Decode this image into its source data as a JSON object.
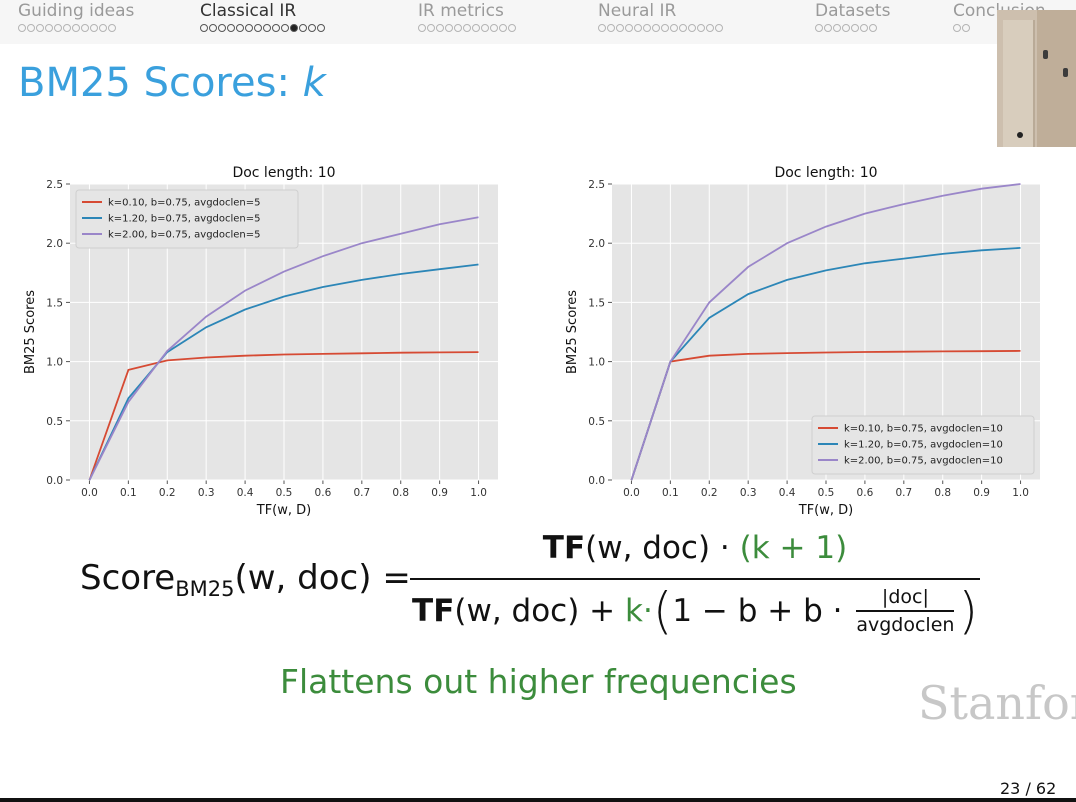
{
  "nav": {
    "sections": [
      {
        "label": "Guiding ideas",
        "dots": 11,
        "filled": -1,
        "active": false
      },
      {
        "label": "Classical IR",
        "dots": 14,
        "filled": 10,
        "active": true
      },
      {
        "label": "IR metrics",
        "dots": 11,
        "filled": -1,
        "active": false
      },
      {
        "label": "Neural IR",
        "dots": 14,
        "filled": -1,
        "active": false
      },
      {
        "label": "Datasets",
        "dots": 7,
        "filled": -1,
        "active": false
      },
      {
        "label": "Conclusion",
        "dots": 2,
        "filled": -1,
        "active": false
      }
    ]
  },
  "slide": {
    "title": "BM25 Scores: ",
    "title_var": "k",
    "caption": "Flattens out higher frequencies",
    "logo": "Stanford",
    "page": "23 / 62"
  },
  "formula": {
    "lhs_main": "Score",
    "lhs_sub": "BM25",
    "lhs_args": "(w, doc) =",
    "tf": "TF",
    "num_args": "(w, doc) · ",
    "num_green": "(k + 1)",
    "den_args": "(w, doc) + ",
    "den_k": "k·",
    "den_open": "(",
    "den_mid": "1 − b + b · ",
    "frac_top": "|doc|",
    "frac_bottom": "avgdoclen",
    "den_close": ")"
  },
  "colors": {
    "title": "#3aa0dd",
    "caption": "#3c8c3c",
    "plot_bg": "#e5e5e5",
    "series": [
      "#d64a33",
      "#2c86b7",
      "#9a86c9"
    ]
  },
  "chart_data": [
    {
      "type": "line",
      "title": "Doc length: 10",
      "xlabel": "TF(w, D)",
      "ylabel": "BM25 Scores",
      "x": [
        0.0,
        0.1,
        0.2,
        0.3,
        0.4,
        0.5,
        0.6,
        0.7,
        0.8,
        0.9,
        1.0
      ],
      "xticks": [
        "0.0",
        "0.1",
        "0.2",
        "0.3",
        "0.4",
        "0.5",
        "0.6",
        "0.7",
        "0.8",
        "0.9",
        "1.0"
      ],
      "yticks": [
        "0.0",
        "0.5",
        "1.0",
        "1.5",
        "2.0",
        "2.5"
      ],
      "xlim": [
        -0.05,
        1.05
      ],
      "ylim": [
        0,
        2.5
      ],
      "grid": true,
      "legend_position": "top-left",
      "series": [
        {
          "name": "k=0.10, b=0.75, avgdoclen=5",
          "values": [
            0.0,
            0.93,
            1.01,
            1.035,
            1.05,
            1.06,
            1.065,
            1.07,
            1.075,
            1.078,
            1.08
          ]
        },
        {
          "name": "k=1.20, b=0.75, avgdoclen=5",
          "values": [
            0.0,
            0.69,
            1.08,
            1.29,
            1.44,
            1.55,
            1.63,
            1.69,
            1.74,
            1.78,
            1.82
          ]
        },
        {
          "name": "k=2.00, b=0.75, avgdoclen=5",
          "values": [
            0.0,
            0.66,
            1.09,
            1.38,
            1.6,
            1.76,
            1.89,
            2.0,
            2.08,
            2.16,
            2.22
          ]
        }
      ]
    },
    {
      "type": "line",
      "title": "Doc length: 10",
      "xlabel": "TF(w, D)",
      "ylabel": "BM25 Scores",
      "x": [
        0.0,
        0.1,
        0.2,
        0.3,
        0.4,
        0.5,
        0.6,
        0.7,
        0.8,
        0.9,
        1.0
      ],
      "xticks": [
        "0.0",
        "0.1",
        "0.2",
        "0.3",
        "0.4",
        "0.5",
        "0.6",
        "0.7",
        "0.8",
        "0.9",
        "1.0"
      ],
      "yticks": [
        "0.0",
        "0.5",
        "1.0",
        "1.5",
        "2.0",
        "2.5"
      ],
      "xlim": [
        -0.05,
        1.05
      ],
      "ylim": [
        0,
        2.5
      ],
      "grid": true,
      "legend_position": "lower-right",
      "series": [
        {
          "name": "k=0.10, b=0.75, avgdoclen=10",
          "values": [
            0.0,
            1.0,
            1.05,
            1.065,
            1.072,
            1.077,
            1.081,
            1.084,
            1.086,
            1.088,
            1.09
          ]
        },
        {
          "name": "k=1.20, b=0.75, avgdoclen=10",
          "values": [
            0.0,
            1.0,
            1.37,
            1.57,
            1.69,
            1.77,
            1.83,
            1.87,
            1.91,
            1.94,
            1.96
          ]
        },
        {
          "name": "k=2.00, b=0.75, avgdoclen=10",
          "values": [
            0.0,
            1.0,
            1.5,
            1.8,
            2.0,
            2.14,
            2.25,
            2.33,
            2.4,
            2.46,
            2.5
          ]
        }
      ]
    }
  ]
}
